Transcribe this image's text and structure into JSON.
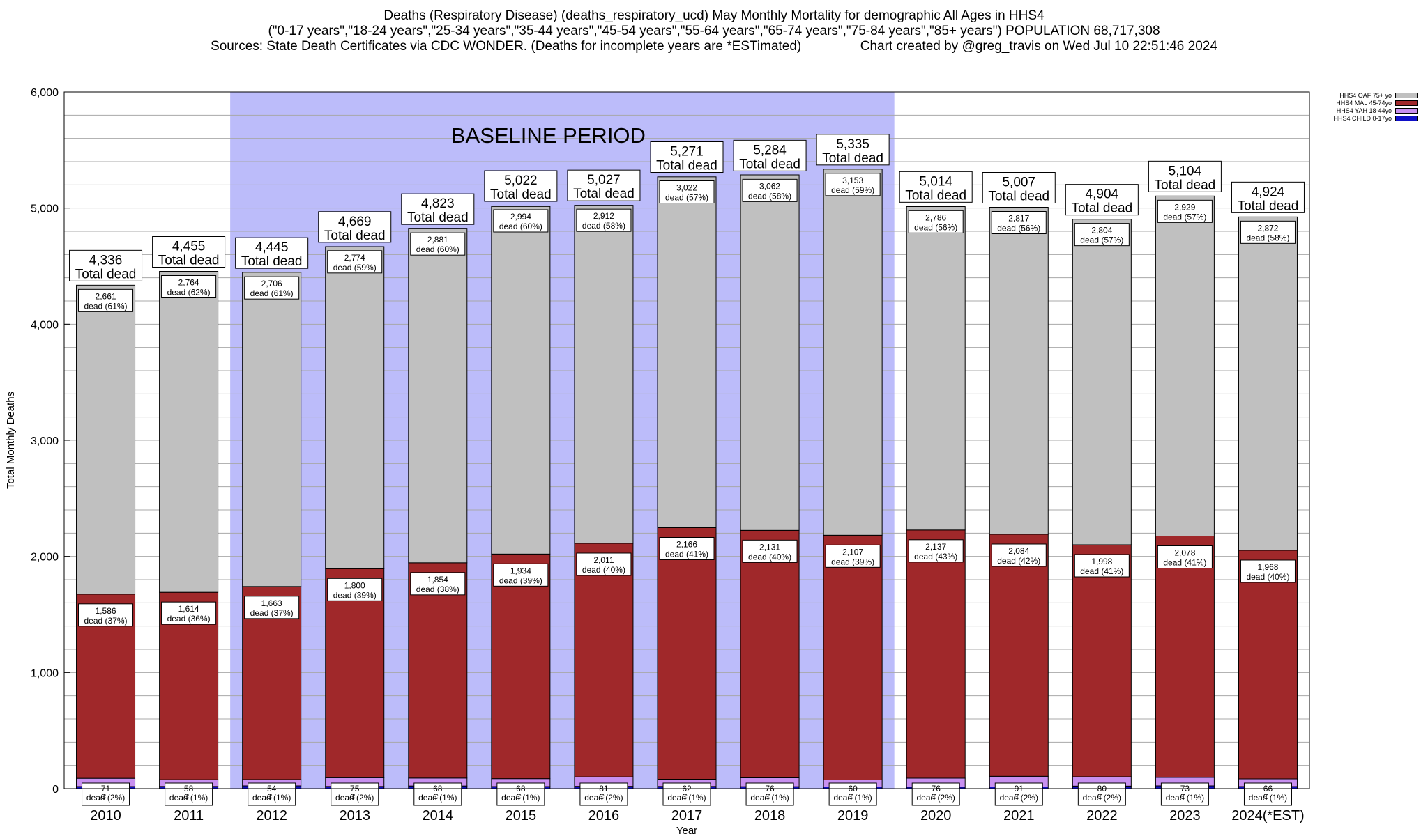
{
  "header": {
    "line1": "Deaths (Respiratory Disease) (deaths_respiratory_ucd) May Monthly Mortality for demographic All Ages in HHS4",
    "line2": "(\"0-17 years\",\"18-24 years\",\"25-34 years\",\"35-44 years\",\"45-54 years\",\"55-64 years\",\"65-74 years\",\"75-84 years\",\"85+ years\") POPULATION 68,717,308",
    "line3": "Sources: State Death Certificates via CDC WONDER. (Deaths for incomplete years are *ESTimated)                Chart created by @greg_travis on Wed Jul 10 22:51:46 2024"
  },
  "chart_data": {
    "type": "bar",
    "stacked": true,
    "xlabel": "Year",
    "ylabel": "Total Monthly Deaths",
    "ylim": [
      0,
      6000
    ],
    "yticks": [
      "0",
      "1,000",
      "2,000",
      "3,000",
      "4,000",
      "5,000",
      "6,000"
    ],
    "grid": true,
    "legend_position": "top-right",
    "baseline_label": "BASELINE PERIOD",
    "baseline_range": [
      "2012",
      "2019"
    ],
    "categories": [
      "2010",
      "2011",
      "2012",
      "2013",
      "2014",
      "2015",
      "2016",
      "2017",
      "2018",
      "2019",
      "2020",
      "2021",
      "2022",
      "2023",
      "2024(*EST)"
    ],
    "totals": [
      4336,
      4455,
      4445,
      4669,
      4823,
      5022,
      5027,
      5271,
      5284,
      5335,
      5014,
      5007,
      4904,
      5104,
      4924
    ],
    "total_label_suffix": "Total dead",
    "dead_word": "dead",
    "series": [
      {
        "name": "HHS4 CHILD 0-17yo",
        "color": "#1010c8",
        "values": [
          18,
          19,
          24,
          19,
          23,
          18,
          20,
          19,
          17,
          15,
          14,
          15,
          22,
          24,
          18
        ],
        "labels": [
          "C",
          "C",
          "C",
          "C",
          "C",
          "C",
          "C",
          "C",
          "C",
          "C",
          "C",
          "C",
          "C",
          "C",
          "C"
        ]
      },
      {
        "name": "HHS4 YAH 18-44yo",
        "color": "#c890f0",
        "values": [
          71,
          58,
          54,
          75,
          68,
          68,
          81,
          62,
          76,
          60,
          76,
          91,
          80,
          73,
          66
        ],
        "labels": [
          "71 dead (2%)",
          "58 dead (1%)",
          "54 dead (1%)",
          "75 dead (2%)",
          "68 dead (1%)",
          "68 dead (1%)",
          "81 dead (2%)",
          "62 dead (1%)",
          "76 dead (1%)",
          "60 dead (1%)",
          "76 dead (2%)",
          "91 dead (2%)",
          "80 dead (2%)",
          "73 dead (1%)",
          "66 dead (1%)"
        ]
      },
      {
        "name": "HHS4 MAL 45-74yo",
        "color": "#a0282a",
        "values": [
          1586,
          1614,
          1663,
          1800,
          1854,
          1934,
          2011,
          2166,
          2131,
          2107,
          2137,
          2084,
          1998,
          2078,
          1968
        ],
        "labels": [
          "1,586 dead (37%)",
          "1,614 dead (36%)",
          "1,663 dead (37%)",
          "1,800 dead (39%)",
          "1,854 dead (38%)",
          "1,934 dead (39%)",
          "2,011 dead (40%)",
          "2,166 dead (41%)",
          "2,131 dead (40%)",
          "2,107 dead (39%)",
          "2,137 dead (43%)",
          "2,084 dead (42%)",
          "1,998 dead (41%)",
          "2,078 dead (41%)",
          "1,968 dead (40%)"
        ]
      },
      {
        "name": "HHS4 OAF 75+ yo",
        "color": "#c0c0c0",
        "values": [
          2661,
          2764,
          2706,
          2774,
          2881,
          2994,
          2912,
          3022,
          3062,
          3153,
          2786,
          2817,
          2804,
          2929,
          2872
        ],
        "labels": [
          "2,661 dead (61%)",
          "2,764 dead (62%)",
          "2,706 dead (61%)",
          "2,774 dead (59%)",
          "2,881 dead (60%)",
          "2,994 dead (60%)",
          "2,912 dead (58%)",
          "3,022 dead (57%)",
          "3,062 dead (58%)",
          "3,153 dead (59%)",
          "2,786 dead (56%)",
          "2,817 dead (56%)",
          "2,804 dead (57%)",
          "2,929 dead (57%)",
          "2,872 dead (58%)"
        ]
      }
    ]
  }
}
